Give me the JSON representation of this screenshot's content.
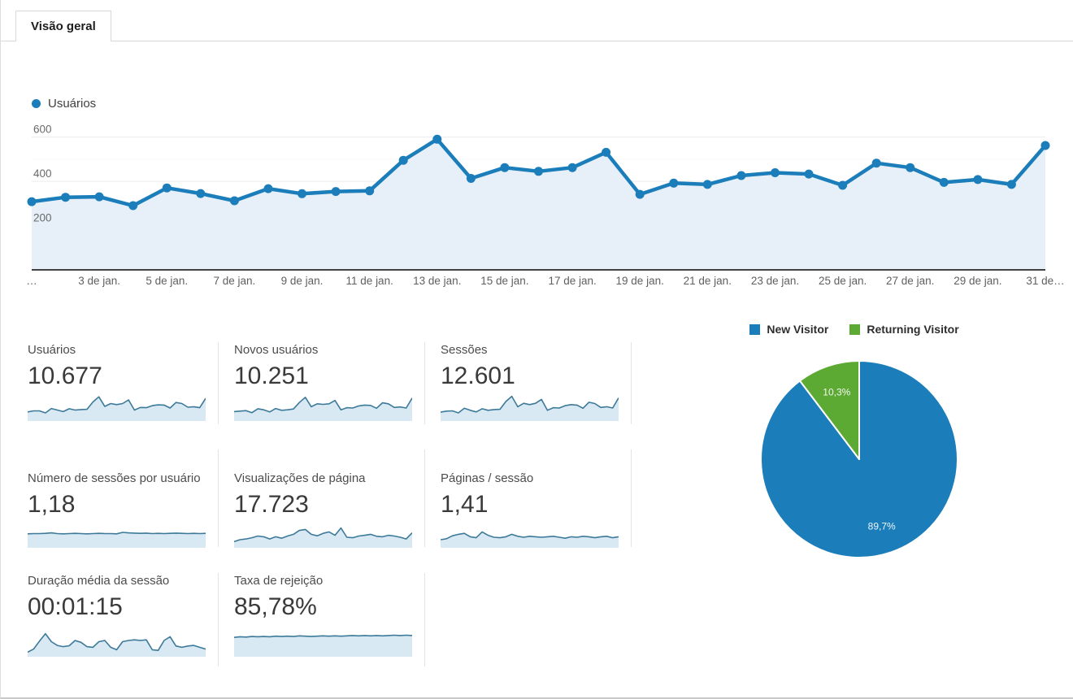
{
  "tab": {
    "label": "Visão geral"
  },
  "colors": {
    "blue": "#1b7eba",
    "green": "#5ca933",
    "area_fill": "#e7f0f8",
    "spark_stroke": "#3d7a99",
    "spark_fill": "#d9e9f4",
    "axis_line": "#424242",
    "grid": "#ececec",
    "grid_minor": "#f6f6f6",
    "tick_text": "#6a6a6a"
  },
  "chart_data": [
    {
      "type": "line",
      "title": "Usuários",
      "legend": [
        "Usuários"
      ],
      "legend_position": "top-left",
      "ylim": [
        0,
        650
      ],
      "y_ticks": [
        200,
        400,
        600
      ],
      "grid": true,
      "x": [
        1,
        2,
        3,
        4,
        5,
        6,
        7,
        8,
        9,
        10,
        11,
        12,
        13,
        14,
        15,
        16,
        17,
        18,
        19,
        20,
        21,
        22,
        23,
        24,
        25,
        26,
        27,
        28,
        29,
        30,
        31
      ],
      "values": [
        308,
        328,
        330,
        290,
        370,
        345,
        312,
        367,
        344,
        354,
        357,
        495,
        590,
        413,
        462,
        445,
        462,
        531,
        341,
        392,
        386,
        426,
        439,
        433,
        382,
        482,
        462,
        395,
        408,
        386,
        562
      ],
      "x_tick_labels": [
        {
          "label": "…",
          "day": 1
        },
        {
          "label": "3 de jan.",
          "day": 3
        },
        {
          "label": "5 de jan.",
          "day": 5
        },
        {
          "label": "7 de jan.",
          "day": 7
        },
        {
          "label": "9 de jan.",
          "day": 9
        },
        {
          "label": "11 de jan.",
          "day": 11
        },
        {
          "label": "13 de jan.",
          "day": 13
        },
        {
          "label": "15 de jan.",
          "day": 15
        },
        {
          "label": "17 de jan.",
          "day": 17
        },
        {
          "label": "19 de jan.",
          "day": 19
        },
        {
          "label": "21 de jan.",
          "day": 21
        },
        {
          "label": "23 de jan.",
          "day": 23
        },
        {
          "label": "25 de jan.",
          "day": 25
        },
        {
          "label": "27 de jan.",
          "day": 27
        },
        {
          "label": "29 de jan.",
          "day": 29
        },
        {
          "label": "31 de…",
          "day": 31
        }
      ]
    },
    {
      "type": "pie",
      "labels": [
        "New Visitor",
        "Returning Visitor"
      ],
      "values": [
        89.7,
        10.3
      ],
      "data_labels": [
        "89,7%",
        "10,3%"
      ],
      "colors": [
        "#1b7eba",
        "#5ca933"
      ],
      "legend_position": "top"
    }
  ],
  "cards": [
    {
      "title": "Usuários",
      "value": "10.677",
      "spark": [
        0.32,
        0.36,
        0.36,
        0.28,
        0.45,
        0.39,
        0.33,
        0.44,
        0.39,
        0.41,
        0.42,
        0.7,
        0.9,
        0.53,
        0.64,
        0.6,
        0.64,
        0.78,
        0.39,
        0.49,
        0.48,
        0.56,
        0.59,
        0.58,
        0.47,
        0.68,
        0.64,
        0.5,
        0.52,
        0.48,
        0.84
      ]
    },
    {
      "title": "Novos usuários",
      "value": "10.251",
      "spark": [
        0.33,
        0.35,
        0.37,
        0.29,
        0.44,
        0.4,
        0.32,
        0.45,
        0.38,
        0.4,
        0.43,
        0.68,
        0.88,
        0.52,
        0.63,
        0.61,
        0.63,
        0.76,
        0.4,
        0.48,
        0.47,
        0.55,
        0.58,
        0.57,
        0.46,
        0.67,
        0.63,
        0.49,
        0.51,
        0.47,
        0.85
      ]
    },
    {
      "title": "Sessões",
      "value": "12.601",
      "spark": [
        0.31,
        0.35,
        0.36,
        0.28,
        0.46,
        0.38,
        0.32,
        0.44,
        0.38,
        0.41,
        0.42,
        0.72,
        0.92,
        0.52,
        0.65,
        0.6,
        0.65,
        0.8,
        0.38,
        0.48,
        0.47,
        0.56,
        0.6,
        0.58,
        0.46,
        0.69,
        0.64,
        0.49,
        0.52,
        0.47,
        0.86
      ]
    },
    {
      "title": "Número de sessões por usuário",
      "value": "1,18",
      "spark": [
        0.54,
        0.55,
        0.55,
        0.56,
        0.58,
        0.55,
        0.54,
        0.55,
        0.56,
        0.55,
        0.54,
        0.55,
        0.56,
        0.55,
        0.55,
        0.54,
        0.6,
        0.58,
        0.57,
        0.56,
        0.57,
        0.55,
        0.56,
        0.55,
        0.56,
        0.57,
        0.56,
        0.55,
        0.56,
        0.55,
        0.56
      ]
    },
    {
      "title": "Visualizações de página",
      "value": "17.723",
      "spark": [
        0.22,
        0.3,
        0.33,
        0.38,
        0.45,
        0.42,
        0.33,
        0.42,
        0.36,
        0.45,
        0.52,
        0.68,
        0.72,
        0.52,
        0.46,
        0.56,
        0.62,
        0.48,
        0.78,
        0.4,
        0.38,
        0.45,
        0.48,
        0.52,
        0.44,
        0.42,
        0.48,
        0.45,
        0.4,
        0.33,
        0.58
      ]
    },
    {
      "title": "Páginas / sessão",
      "value": "1,41",
      "spark": [
        0.3,
        0.34,
        0.46,
        0.52,
        0.56,
        0.42,
        0.38,
        0.62,
        0.48,
        0.4,
        0.38,
        0.42,
        0.52,
        0.44,
        0.4,
        0.44,
        0.42,
        0.4,
        0.42,
        0.44,
        0.4,
        0.36,
        0.42,
        0.4,
        0.44,
        0.42,
        0.38,
        0.42,
        0.44,
        0.38,
        0.42
      ]
    },
    {
      "title": "Duração média da sessão",
      "value": "00:01:15",
      "spark": [
        0.12,
        0.22,
        0.48,
        0.72,
        0.46,
        0.34,
        0.3,
        0.33,
        0.5,
        0.44,
        0.3,
        0.28,
        0.46,
        0.5,
        0.28,
        0.2,
        0.46,
        0.5,
        0.52,
        0.5,
        0.52,
        0.2,
        0.18,
        0.5,
        0.62,
        0.32,
        0.28,
        0.32,
        0.34,
        0.28,
        0.22
      ]
    },
    {
      "title": "Taxa de rejeição",
      "value": "85,78%",
      "spark": [
        0.6,
        0.62,
        0.61,
        0.63,
        0.62,
        0.63,
        0.62,
        0.64,
        0.63,
        0.64,
        0.63,
        0.65,
        0.64,
        0.63,
        0.64,
        0.65,
        0.64,
        0.65,
        0.64,
        0.65,
        0.66,
        0.65,
        0.66,
        0.65,
        0.66,
        0.65,
        0.66,
        0.67,
        0.66,
        0.67,
        0.66
      ]
    }
  ]
}
